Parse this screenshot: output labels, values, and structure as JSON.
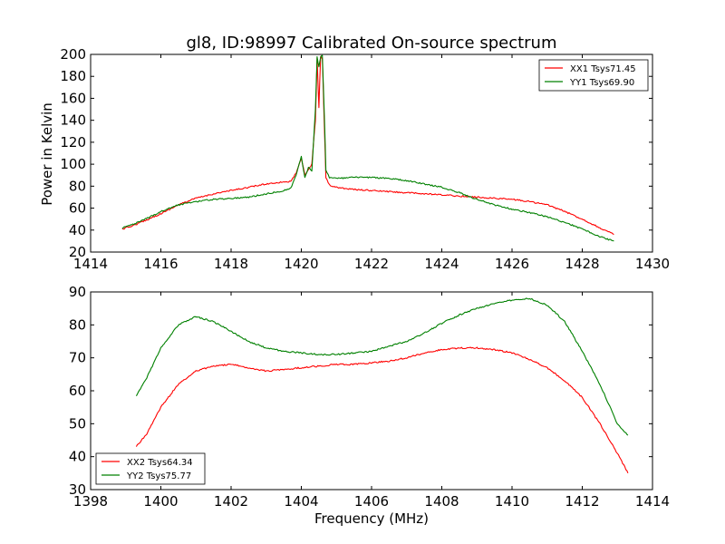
{
  "chart_data": [
    {
      "type": "line",
      "title": "gl8, ID:98997 Calibrated On-source spectrum",
      "xlabel": "",
      "ylabel": "Power in Kelvin",
      "xlim": [
        1414,
        1430
      ],
      "ylim": [
        20,
        200
      ],
      "xticks": [
        1414,
        1416,
        1418,
        1420,
        1422,
        1424,
        1426,
        1428,
        1430
      ],
      "yticks": [
        20,
        40,
        60,
        80,
        100,
        120,
        140,
        160,
        180,
        200
      ],
      "legend_position": "upper right",
      "series": [
        {
          "name": "XX1 Tsys71.45",
          "color": "#ff0000",
          "points": [
            [
              1414.9,
              41
            ],
            [
              1415.2,
              44
            ],
            [
              1415.5,
              48
            ],
            [
              1416.0,
              55
            ],
            [
              1416.5,
              63
            ],
            [
              1417.0,
              69
            ],
            [
              1417.5,
              73
            ],
            [
              1418.0,
              76
            ],
            [
              1418.5,
              79
            ],
            [
              1419.0,
              82
            ],
            [
              1419.5,
              84
            ],
            [
              1419.7,
              84
            ],
            [
              1419.85,
              92
            ],
            [
              1420.0,
              105
            ],
            [
              1420.1,
              90
            ],
            [
              1420.2,
              95
            ],
            [
              1420.3,
              100
            ],
            [
              1420.4,
              140
            ],
            [
              1420.45,
              196
            ],
            [
              1420.5,
              152
            ],
            [
              1420.55,
              198
            ],
            [
              1420.6,
              196
            ],
            [
              1420.65,
              140
            ],
            [
              1420.7,
              88
            ],
            [
              1420.8,
              81
            ],
            [
              1421.0,
              79
            ],
            [
              1421.5,
              77
            ],
            [
              1422.0,
              76
            ],
            [
              1422.5,
              75
            ],
            [
              1423.0,
              74
            ],
            [
              1423.5,
              73
            ],
            [
              1424.0,
              72
            ],
            [
              1424.5,
              71
            ],
            [
              1425.0,
              70
            ],
            [
              1425.5,
              69
            ],
            [
              1426.0,
              68
            ],
            [
              1426.5,
              66
            ],
            [
              1427.0,
              63
            ],
            [
              1427.5,
              57
            ],
            [
              1428.0,
              50
            ],
            [
              1428.5,
              42
            ],
            [
              1428.9,
              36
            ]
          ]
        },
        {
          "name": "YY1 Tsys69.90",
          "color": "#008000",
          "points": [
            [
              1414.9,
              42
            ],
            [
              1415.2,
              45
            ],
            [
              1415.5,
              49
            ],
            [
              1416.0,
              57
            ],
            [
              1416.5,
              63
            ],
            [
              1417.0,
              66
            ],
            [
              1417.5,
              68
            ],
            [
              1418.0,
              69
            ],
            [
              1418.5,
              70
            ],
            [
              1419.0,
              73
            ],
            [
              1419.5,
              76
            ],
            [
              1419.7,
              78
            ],
            [
              1419.85,
              90
            ],
            [
              1420.0,
              107
            ],
            [
              1420.1,
              88
            ],
            [
              1420.2,
              97
            ],
            [
              1420.3,
              94
            ],
            [
              1420.4,
              150
            ],
            [
              1420.45,
              198
            ],
            [
              1420.5,
              188
            ],
            [
              1420.55,
              198
            ],
            [
              1420.6,
              199
            ],
            [
              1420.65,
              150
            ],
            [
              1420.7,
              95
            ],
            [
              1420.8,
              88
            ],
            [
              1421.0,
              87
            ],
            [
              1421.5,
              88
            ],
            [
              1422.0,
              88
            ],
            [
              1422.5,
              87
            ],
            [
              1423.0,
              85
            ],
            [
              1423.5,
              82
            ],
            [
              1424.0,
              79
            ],
            [
              1424.5,
              74
            ],
            [
              1425.0,
              68
            ],
            [
              1425.5,
              63
            ],
            [
              1426.0,
              59
            ],
            [
              1426.5,
              56
            ],
            [
              1427.0,
              52
            ],
            [
              1427.5,
              47
            ],
            [
              1428.0,
              41
            ],
            [
              1428.5,
              34
            ],
            [
              1428.9,
              30
            ]
          ]
        }
      ]
    },
    {
      "type": "line",
      "title": "",
      "xlabel": "Frequency (MHz)",
      "ylabel": "",
      "xlim": [
        1398,
        1414
      ],
      "ylim": [
        30,
        90
      ],
      "xticks": [
        1398,
        1400,
        1402,
        1404,
        1406,
        1408,
        1410,
        1412,
        1414
      ],
      "yticks": [
        30,
        40,
        50,
        60,
        70,
        80,
        90
      ],
      "legend_position": "lower left",
      "series": [
        {
          "name": "XX2 Tsys64.34",
          "color": "#ff0000",
          "points": [
            [
              1399.3,
              43
            ],
            [
              1399.6,
              47
            ],
            [
              1400.0,
              55
            ],
            [
              1400.5,
              62
            ],
            [
              1401.0,
              66
            ],
            [
              1401.5,
              67.5
            ],
            [
              1402.0,
              68
            ],
            [
              1402.5,
              67
            ],
            [
              1403.0,
              66
            ],
            [
              1403.5,
              66.5
            ],
            [
              1404.0,
              67
            ],
            [
              1404.5,
              67.5
            ],
            [
              1405.0,
              68
            ],
            [
              1405.5,
              68
            ],
            [
              1406.0,
              68.5
            ],
            [
              1406.5,
              69
            ],
            [
              1407.0,
              70
            ],
            [
              1407.5,
              71.5
            ],
            [
              1408.0,
              72.5
            ],
            [
              1408.5,
              73
            ],
            [
              1409.0,
              73
            ],
            [
              1409.5,
              72.5
            ],
            [
              1410.0,
              71.5
            ],
            [
              1410.5,
              69.5
            ],
            [
              1411.0,
              67
            ],
            [
              1411.5,
              63
            ],
            [
              1412.0,
              58
            ],
            [
              1412.5,
              50
            ],
            [
              1413.0,
              41
            ],
            [
              1413.3,
              35
            ]
          ]
        },
        {
          "name": "YY2 Tsys75.77",
          "color": "#008000",
          "points": [
            [
              1399.3,
              58.5
            ],
            [
              1399.6,
              64
            ],
            [
              1400.0,
              73
            ],
            [
              1400.5,
              80
            ],
            [
              1401.0,
              82.5
            ],
            [
              1401.5,
              81
            ],
            [
              1402.0,
              78
            ],
            [
              1402.5,
              75
            ],
            [
              1403.0,
              73
            ],
            [
              1403.5,
              72
            ],
            [
              1404.0,
              71.5
            ],
            [
              1404.5,
              71
            ],
            [
              1405.0,
              71
            ],
            [
              1405.5,
              71.5
            ],
            [
              1406.0,
              72
            ],
            [
              1406.5,
              73.5
            ],
            [
              1407.0,
              75
            ],
            [
              1407.5,
              77.5
            ],
            [
              1408.0,
              80.5
            ],
            [
              1408.5,
              83
            ],
            [
              1409.0,
              85
            ],
            [
              1409.5,
              86.5
            ],
            [
              1410.0,
              87.5
            ],
            [
              1410.5,
              88
            ],
            [
              1411.0,
              86
            ],
            [
              1411.5,
              81
            ],
            [
              1412.0,
              72
            ],
            [
              1412.5,
              62
            ],
            [
              1413.0,
              50
            ],
            [
              1413.3,
              46.5
            ]
          ]
        }
      ]
    }
  ]
}
